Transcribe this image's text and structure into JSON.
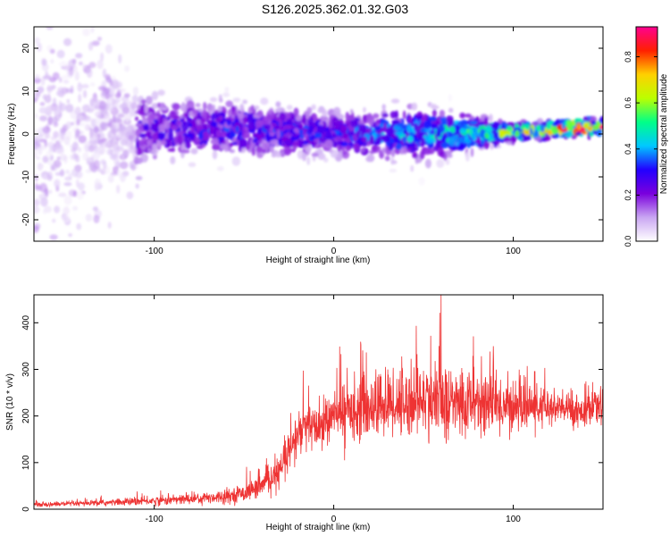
{
  "title": "S126.2025.362.01.32.G03",
  "chart_data": [
    {
      "type": "heatmap",
      "title": "S126.2025.362.01.32.G03",
      "xlabel": "Height of straight line (km)",
      "ylabel": "Frequency (Hz)",
      "xlim": [
        -167,
        150
      ],
      "ylim": [
        -25,
        25
      ],
      "xticks": [
        -100,
        0,
        100
      ],
      "yticks": [
        -20,
        -10,
        0,
        10,
        20
      ],
      "colorbar": {
        "label": "Normalized spectral amplitude",
        "range": [
          0,
          0.93
        ],
        "ticks": [
          0.0,
          0.2,
          0.4,
          0.6,
          0.8
        ],
        "colors": [
          "#ffffff",
          "#c9a6f2",
          "#7a00dd",
          "#2200ff",
          "#00c8ff",
          "#00ff88",
          "#bbff00",
          "#ffd000",
          "#ff2000",
          "#ff0090"
        ]
      },
      "description_points": [
        {
          "x": -150,
          "freq_center": 0,
          "freq_spread": 24,
          "amplitude": 0.05
        },
        {
          "x": -100,
          "freq_center": 1,
          "freq_spread": 6,
          "amplitude": 0.25
        },
        {
          "x": -50,
          "freq_center": 1,
          "freq_spread": 5,
          "amplitude": 0.3
        },
        {
          "x": 0,
          "freq_center": 0,
          "freq_spread": 4,
          "amplitude": 0.3
        },
        {
          "x": 50,
          "freq_center": 0,
          "freq_spread": 5,
          "amplitude": 0.4
        },
        {
          "x": 100,
          "freq_center": 0.5,
          "freq_spread": 1.5,
          "amplitude": 0.55
        },
        {
          "x": 140,
          "freq_center": 1.5,
          "freq_spread": 1.5,
          "amplitude": 0.8
        }
      ]
    },
    {
      "type": "line",
      "xlabel": "Height of straight line (km)",
      "ylabel": "SNR (10 * v/v)",
      "xlim": [
        -167,
        150
      ],
      "ylim": [
        0,
        460
      ],
      "xticks": [
        -100,
        0,
        100
      ],
      "yticks": [
        0,
        100,
        200,
        300,
        400
      ],
      "color": "#ee3333",
      "series": [
        {
          "name": "SNR",
          "x": [
            -167,
            -140,
            -120,
            -100,
            -80,
            -60,
            -50,
            -40,
            -30,
            -25,
            -20,
            -15,
            -10,
            -5,
            0,
            10,
            20,
            30,
            40,
            50,
            60,
            70,
            80,
            90,
            100,
            110,
            120,
            130,
            140,
            150
          ],
          "values": [
            10,
            12,
            15,
            18,
            22,
            28,
            35,
            50,
            80,
            120,
            160,
            180,
            170,
            185,
            200,
            215,
            220,
            225,
            230,
            235,
            230,
            225,
            230,
            225,
            220,
            220,
            215,
            215,
            210,
            220
          ],
          "spread": [
            4,
            5,
            6,
            8,
            10,
            12,
            15,
            20,
            30,
            40,
            45,
            45,
            40,
            40,
            45,
            55,
            60,
            60,
            65,
            65,
            65,
            65,
            60,
            55,
            45,
            40,
            35,
            30,
            30,
            30
          ]
        }
      ]
    }
  ]
}
